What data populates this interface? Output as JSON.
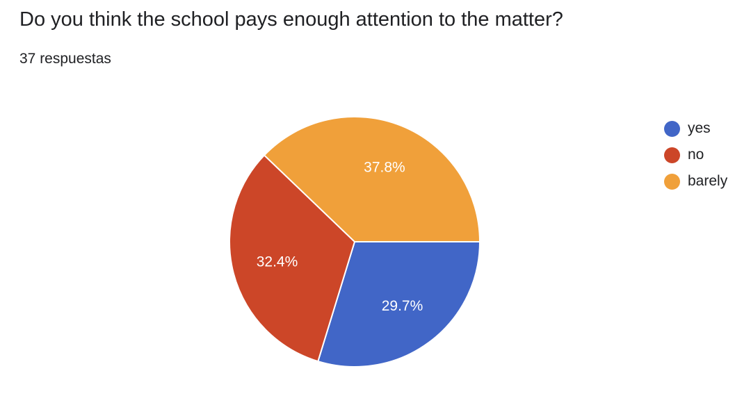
{
  "question": {
    "title": "Do you think the school pays enough attention to the matter?",
    "response_count": "37 respuestas"
  },
  "chart_data": {
    "type": "pie",
    "categories": [
      "yes",
      "no",
      "barely"
    ],
    "values": [
      29.7,
      32.4,
      37.8
    ],
    "labels": [
      "29.7%",
      "32.4%",
      "37.8%"
    ],
    "colors": [
      "#4166c7",
      "#cc4628",
      "#f0a03a"
    ],
    "legend_position": "right"
  }
}
